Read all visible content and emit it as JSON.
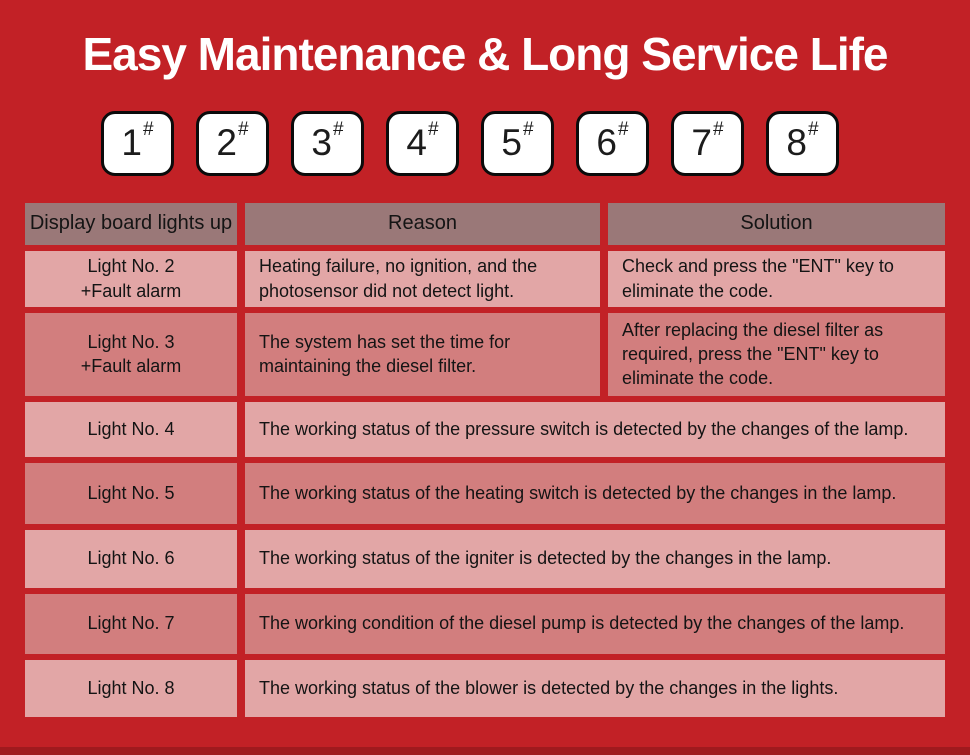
{
  "title": "Easy Maintenance & Long Service Life",
  "unit_buttons": [
    {
      "number": "1",
      "mark": "#"
    },
    {
      "number": "2",
      "mark": "#"
    },
    {
      "number": "3",
      "mark": "#"
    },
    {
      "number": "4",
      "mark": "#"
    },
    {
      "number": "5",
      "mark": "#"
    },
    {
      "number": "6",
      "mark": "#"
    },
    {
      "number": "7",
      "mark": "#"
    },
    {
      "number": "8",
      "mark": "#"
    }
  ],
  "table": {
    "headers": {
      "col1": "Display board lights up",
      "col2": "Reason",
      "col3": "Solution"
    },
    "rows": [
      {
        "light_line1": "Light No. 2",
        "light_line2": "+Fault alarm",
        "reason": "Heating failure, no ignition, and the photosensor did not detect light.",
        "solution": "Check and press the \"ENT\" key to eliminate the code."
      },
      {
        "light_line1": "Light No. 3",
        "light_line2": "+Fault alarm",
        "reason": "The system has set the time for maintaining the diesel filter.",
        "solution": "After replacing the diesel filter as required, press the \"ENT\" key to eliminate the code."
      },
      {
        "light_line1": "Light No. 4",
        "description": "The working status of the pressure switch is detected by the changes of the lamp."
      },
      {
        "light_line1": "Light No. 5",
        "description": "The working status of the heating switch is detected by the changes in the lamp."
      },
      {
        "light_line1": "Light No. 6",
        "description": "The working status of the igniter is detected by the changes in the lamp."
      },
      {
        "light_line1": "Light No. 7",
        "description": "The working condition of the diesel pump is detected by the changes of the lamp."
      },
      {
        "light_line1": "Light No. 8",
        "description": "The working status of the blower is detected by the changes in the lights."
      }
    ]
  },
  "colors": {
    "background": "#c22126",
    "header_cell": "#9a7878",
    "row_light": "#e2a6a6",
    "row_dark": "#d27e7e",
    "title_text": "#ffffff",
    "cell_text": "#141414",
    "bottom_shade": "#a01a1e"
  }
}
